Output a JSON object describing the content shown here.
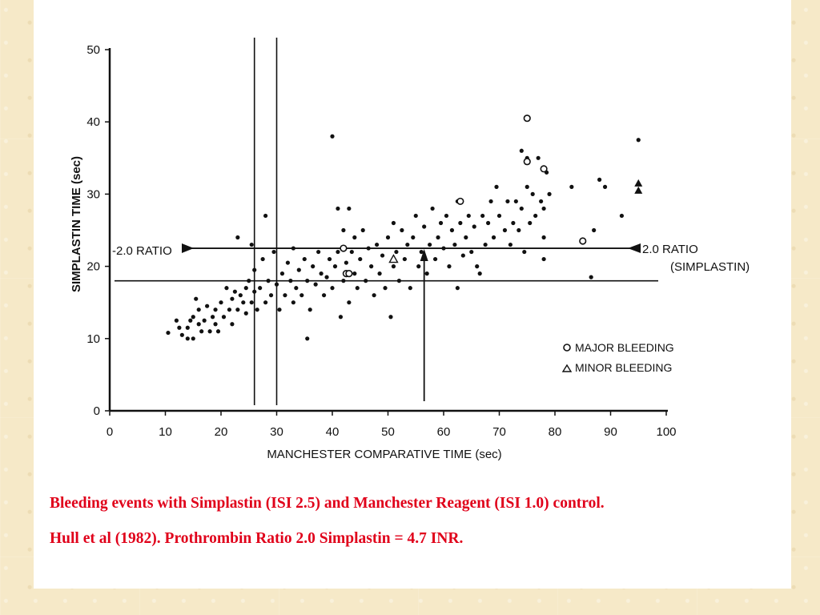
{
  "chart_data": {
    "type": "scatter",
    "xlabel": "MANCHESTER COMPARATIVE TIME  (sec)",
    "ylabel": "SIMPLASTIN TIME  (sec)",
    "xlim": [
      0,
      100
    ],
    "ylim": [
      0,
      50
    ],
    "x_ticks": [
      0,
      10,
      20,
      30,
      40,
      50,
      60,
      70,
      80,
      90,
      100
    ],
    "y_ticks": [
      0,
      10,
      20,
      30,
      40,
      50
    ],
    "grid": false,
    "legend_position": "bottom-right",
    "series": [
      {
        "name": "",
        "marker": "dot",
        "points": [
          [
            10.5,
            10.8
          ],
          [
            12,
            12.5
          ],
          [
            12.5,
            11.5
          ],
          [
            13,
            10.5
          ],
          [
            14,
            10
          ],
          [
            14,
            11.5
          ],
          [
            14.5,
            12.5
          ],
          [
            15,
            10
          ],
          [
            15,
            13
          ],
          [
            15.5,
            15.5
          ],
          [
            16,
            12
          ],
          [
            16,
            14
          ],
          [
            16.5,
            11
          ],
          [
            17,
            12.5
          ],
          [
            17.5,
            14.5
          ],
          [
            18,
            11
          ],
          [
            18.5,
            13
          ],
          [
            19,
            14
          ],
          [
            19,
            12
          ],
          [
            19.5,
            11
          ],
          [
            20,
            15
          ],
          [
            20.5,
            13
          ],
          [
            21,
            17
          ],
          [
            21.5,
            14
          ],
          [
            22,
            12
          ],
          [
            22,
            15.5
          ],
          [
            22.5,
            16.5
          ],
          [
            23,
            14
          ],
          [
            23,
            24
          ],
          [
            23.5,
            16
          ],
          [
            24,
            15
          ],
          [
            24.5,
            17
          ],
          [
            24.5,
            13.5
          ],
          [
            25,
            18
          ],
          [
            25.5,
            15
          ],
          [
            25.5,
            23
          ],
          [
            26,
            16.5
          ],
          [
            26,
            19.5
          ],
          [
            26.5,
            14
          ],
          [
            27,
            17
          ],
          [
            27.5,
            21
          ],
          [
            28,
            15
          ],
          [
            28,
            27
          ],
          [
            28.5,
            18
          ],
          [
            29,
            16
          ],
          [
            29.5,
            22
          ],
          [
            30,
            17.5
          ],
          [
            30.5,
            14
          ],
          [
            31,
            19
          ],
          [
            31.5,
            16
          ],
          [
            32,
            20.5
          ],
          [
            32.5,
            18
          ],
          [
            33,
            15
          ],
          [
            33,
            22.5
          ],
          [
            33.5,
            17
          ],
          [
            34,
            19.5
          ],
          [
            34.5,
            16
          ],
          [
            35,
            21
          ],
          [
            35.5,
            18
          ],
          [
            35.5,
            10
          ],
          [
            36,
            14
          ],
          [
            36.5,
            20
          ],
          [
            37,
            17.5
          ],
          [
            37.5,
            22
          ],
          [
            38,
            19
          ],
          [
            38.5,
            16
          ],
          [
            39,
            18.5
          ],
          [
            39.5,
            21
          ],
          [
            40,
            17
          ],
          [
            40,
            38
          ],
          [
            40.5,
            20
          ],
          [
            41,
            22
          ],
          [
            41,
            28
          ],
          [
            41.5,
            13
          ],
          [
            42,
            18
          ],
          [
            42,
            25
          ],
          [
            42.5,
            20.5
          ],
          [
            43,
            15
          ],
          [
            43,
            28
          ],
          [
            43.5,
            22
          ],
          [
            44,
            19
          ],
          [
            44,
            24
          ],
          [
            44.5,
            17
          ],
          [
            45,
            21
          ],
          [
            45.5,
            25
          ],
          [
            46,
            18
          ],
          [
            46.5,
            22.5
          ],
          [
            47,
            20
          ],
          [
            47.5,
            16
          ],
          [
            48,
            23
          ],
          [
            48.5,
            19
          ],
          [
            49,
            21.5
          ],
          [
            49.5,
            17
          ],
          [
            50,
            24
          ],
          [
            50.5,
            13
          ],
          [
            51,
            20
          ],
          [
            51,
            26
          ],
          [
            51.5,
            22
          ],
          [
            52,
            18
          ],
          [
            52.5,
            25
          ],
          [
            53,
            21
          ],
          [
            53.5,
            23
          ],
          [
            54,
            17
          ],
          [
            54.5,
            24
          ],
          [
            55,
            27
          ],
          [
            55.5,
            20
          ],
          [
            56,
            22
          ],
          [
            56.5,
            25.5
          ],
          [
            57,
            19
          ],
          [
            57.5,
            23
          ],
          [
            58,
            28
          ],
          [
            58.5,
            21
          ],
          [
            59,
            24
          ],
          [
            59.5,
            26
          ],
          [
            60,
            22.5
          ],
          [
            60.5,
            27
          ],
          [
            61,
            20
          ],
          [
            61.5,
            25
          ],
          [
            62,
            23
          ],
          [
            62.5,
            17
          ],
          [
            62.5,
            29
          ],
          [
            63,
            26
          ],
          [
            63.5,
            21.5
          ],
          [
            64,
            24
          ],
          [
            64.5,
            27
          ],
          [
            65,
            22
          ],
          [
            65.5,
            25.5
          ],
          [
            66,
            20
          ],
          [
            66.5,
            19
          ],
          [
            67,
            27
          ],
          [
            67.5,
            23
          ],
          [
            68,
            26
          ],
          [
            68.5,
            29
          ],
          [
            69,
            24
          ],
          [
            69.5,
            31
          ],
          [
            70,
            27
          ],
          [
            71,
            25
          ],
          [
            71.5,
            29
          ],
          [
            72,
            23
          ],
          [
            72.5,
            26
          ],
          [
            73,
            29
          ],
          [
            73.5,
            25
          ],
          [
            74,
            36
          ],
          [
            74,
            28
          ],
          [
            74.5,
            22
          ],
          [
            75,
            31
          ],
          [
            75,
            35
          ],
          [
            75.5,
            26
          ],
          [
            76,
            30
          ],
          [
            76.5,
            27
          ],
          [
            77,
            35
          ],
          [
            77.5,
            29
          ],
          [
            78,
            21
          ],
          [
            78,
            24
          ],
          [
            78,
            28
          ],
          [
            78.5,
            33
          ],
          [
            79,
            30
          ],
          [
            83,
            31
          ],
          [
            86.5,
            18.5
          ],
          [
            87,
            25
          ],
          [
            88,
            32
          ],
          [
            89,
            31
          ],
          [
            92,
            27
          ],
          [
            95,
            37.5
          ]
        ]
      },
      {
        "name": "MAJOR BLEEDING",
        "marker": "open-circle",
        "points": [
          [
            42,
            22.5
          ],
          [
            42.5,
            19
          ],
          [
            43,
            19
          ],
          [
            63,
            29
          ],
          [
            75,
            40.5
          ],
          [
            75,
            34.5
          ],
          [
            78,
            33.5
          ],
          [
            85,
            23.5
          ]
        ]
      },
      {
        "name": "MINOR BLEEDING",
        "marker": "open-triangle",
        "points": [
          [
            51,
            21
          ]
        ]
      },
      {
        "name": "",
        "marker": "filled-triangle",
        "points": [
          [
            95,
            30.5
          ],
          [
            95,
            31.5
          ]
        ]
      }
    ],
    "reference_lines": {
      "vertical_x": [
        26,
        30
      ],
      "horizontal_y": [
        18
      ],
      "ratio_line_y": 22.5,
      "arrow_up_x": 56.5
    },
    "annotations": {
      "left_ratio": "-2.0 RATIO",
      "right_ratio_line1": "2.0 RATIO",
      "right_ratio_line2": "(SIMPLASTIN)"
    }
  },
  "legend": {
    "major": "MAJOR BLEEDING",
    "minor": "MINOR BLEEDING"
  },
  "caption": {
    "line1": "Bleeding events with Simplastin (ISI 2.5) and Manchester Reagent (ISI 1.0) control.",
    "line2": "Hull et al (1982).  Prothrombin Ratio 2.0 Simplastin = 4.7 INR."
  }
}
